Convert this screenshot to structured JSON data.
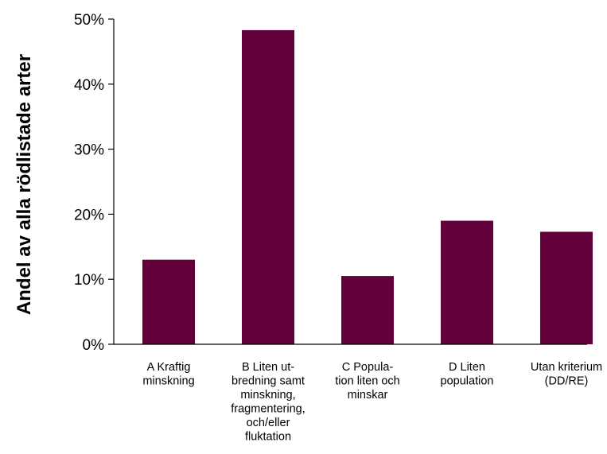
{
  "chart_data": {
    "type": "bar",
    "title": "",
    "xlabel": "",
    "ylabel": "Andel av alla rödlistade arter",
    "ylim": [
      0,
      50
    ],
    "y_tick_labels": [
      "0%",
      "10%",
      "20%",
      "30%",
      "40%",
      "50%"
    ],
    "y_ticks": [
      0,
      10,
      20,
      30,
      40,
      50
    ],
    "grid": false,
    "legend": "none",
    "bar_color": "#64003a",
    "categories": [
      [
        "A Kraftig",
        "minskning"
      ],
      [
        "B Liten ut-",
        "bredning samt",
        "minskning,",
        "fragmentering,",
        "och/eller",
        "fluktation"
      ],
      [
        "C Popula-",
        "tion liten och",
        "minskar"
      ],
      [
        "D Liten",
        "population"
      ],
      [
        "Utan kriterium",
        "(DD/RE)"
      ]
    ],
    "values": [
      13,
      48.3,
      10.5,
      19,
      17.3
    ]
  }
}
